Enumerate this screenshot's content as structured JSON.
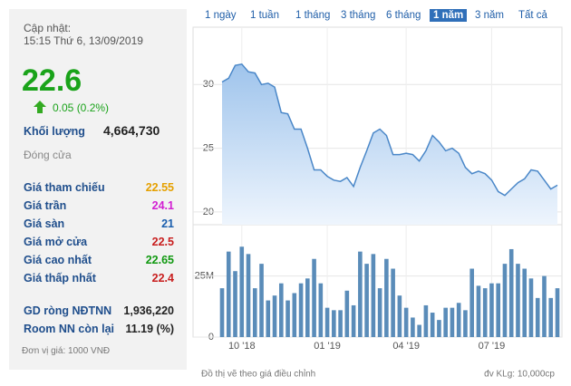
{
  "panel": {
    "updated_label": "Cập nhật:",
    "updated_time": "15:15 Thứ 6, 13/09/2019",
    "price": "22.6",
    "change": "0.05 (0.2%)",
    "volume_label": "Khối lượng",
    "volume": "4,664,730",
    "status": "Đóng cửa",
    "rows": [
      [
        "Giá tham chiếu",
        "22.55"
      ],
      [
        "Giá trần",
        "24.1"
      ],
      [
        "Giá sàn",
        "21"
      ],
      [
        "Giá mở cửa",
        "22.5"
      ],
      [
        "Giá cao nhất",
        "22.65"
      ],
      [
        "Giá thấp nhất",
        "22.4"
      ]
    ],
    "foreign": [
      [
        "GD ròng NĐTNN",
        "1,936,220"
      ],
      [
        "Room NN còn lại",
        "11.19 (%)"
      ]
    ],
    "unit": "Đơn vị giá: 1000 VNĐ"
  },
  "ranges": [
    "1 ngày",
    "1 tuần",
    "1 tháng",
    "3 tháng",
    "6 tháng",
    "1 năm",
    "3 năm",
    "Tất cả"
  ],
  "active_range": "1 năm",
  "footer": {
    "note": "Đồ thị vẽ theo giá điều chỉnh",
    "unit": "đv KLg: 10,000cp"
  },
  "chart_data": [
    {
      "type": "area",
      "color": "#4a87c8",
      "grid": true,
      "ylim": [
        19,
        34.5
      ],
      "yticks": [
        20,
        25,
        30
      ],
      "values": [
        30.2,
        30.5,
        31.5,
        31.6,
        31,
        30.9,
        30,
        30.1,
        29.8,
        27.8,
        27.7,
        26.5,
        26.5,
        25,
        23.3,
        23.3,
        22.8,
        22.5,
        22.4,
        22.7,
        22,
        23.5,
        24.8,
        26.2,
        26.5,
        26,
        24.5,
        24.5,
        24.6,
        24.5,
        24,
        24.8,
        26,
        25.5,
        24.8,
        25,
        24.6,
        23.5,
        23,
        23.2,
        23,
        22.5,
        21.6,
        21.3,
        21.8,
        22.3,
        22.6,
        23.3,
        23.2,
        22.5,
        21.8,
        22.1
      ]
    },
    {
      "type": "bar",
      "color": "#5a8cb9",
      "grid": true,
      "ylim": [
        0,
        46000000
      ],
      "yticks": [
        0,
        {
          "value": 25000000,
          "label": "25M"
        }
      ],
      "categories": [
        null,
        null,
        null,
        "10 '18",
        null,
        null,
        null,
        null,
        null,
        null,
        null,
        null,
        null,
        null,
        null,
        null,
        "01 '19",
        null,
        null,
        null,
        null,
        null,
        null,
        null,
        null,
        null,
        null,
        null,
        "04 '19",
        null,
        null,
        null,
        null,
        null,
        null,
        null,
        null,
        null,
        null,
        null,
        null,
        "07 '19",
        null,
        null,
        null,
        null,
        null,
        null,
        null,
        null,
        null,
        null
      ],
      "values": [
        20000000,
        35000000,
        27000000,
        37000000,
        34000000,
        20000000,
        30000000,
        15000000,
        17000000,
        22000000,
        15000000,
        18000000,
        22000000,
        24000000,
        32000000,
        22000000,
        12000000,
        11000000,
        11000000,
        19000000,
        13000000,
        35000000,
        30000000,
        34000000,
        20000000,
        32000000,
        28000000,
        17000000,
        12000000,
        8000000,
        5000000,
        13000000,
        10000000,
        7000000,
        12000000,
        12000000,
        14000000,
        11000000,
        28000000,
        21000000,
        20000000,
        22000000,
        22000000,
        30000000,
        36000000,
        30000000,
        28000000,
        24000000,
        16000000,
        25000000,
        16000000,
        20000000
      ]
    }
  ]
}
